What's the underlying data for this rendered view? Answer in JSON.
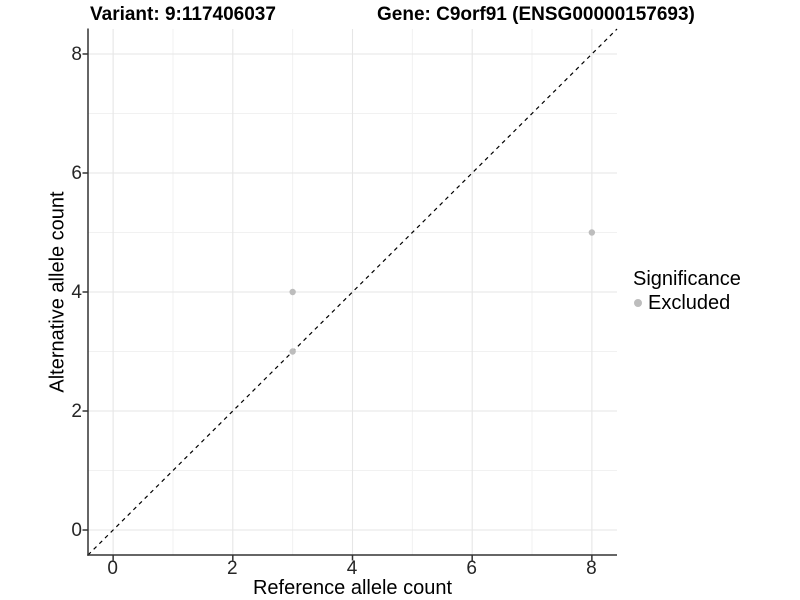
{
  "figure": {
    "title_left": "Variant: 9:117406037",
    "title_right": "Gene: C9orf91 (ENSG00000157693)"
  },
  "chart_data": {
    "type": "scatter",
    "title": "Variant: 9:117406037    Gene: C9orf91 (ENSG00000157693)",
    "xlabel": "Reference allele count",
    "ylabel": "Alternative allele count",
    "xlim": [
      -0.42,
      8.42
    ],
    "ylim": [
      -0.42,
      8.42
    ],
    "x_ticks": [
      0,
      2,
      4,
      6,
      8
    ],
    "y_ticks": [
      0,
      2,
      4,
      6,
      8
    ],
    "x_minor_ticks": [
      1,
      3,
      5,
      7
    ],
    "y_minor_ticks": [
      1,
      3,
      5,
      7
    ],
    "grid": true,
    "series": [
      {
        "name": "Excluded",
        "color": "#bdbdbd",
        "points": [
          {
            "x": 3,
            "y": 3
          },
          {
            "x": 3,
            "y": 4
          },
          {
            "x": 8,
            "y": 5
          }
        ]
      }
    ],
    "reference_line": {
      "type": "identity",
      "equation": "y = x",
      "style": "dashed",
      "color": "#000000"
    },
    "legend": {
      "title": "Significance",
      "position": "right",
      "items": [
        {
          "label": "Excluded",
          "color": "#bdbdbd"
        }
      ]
    }
  },
  "colors": {
    "grid_major": "#e6e6e6",
    "grid_minor": "#f1f1f1",
    "axis_line": "#333333",
    "tick_mark": "#333333",
    "point": "#bdbdbd"
  }
}
